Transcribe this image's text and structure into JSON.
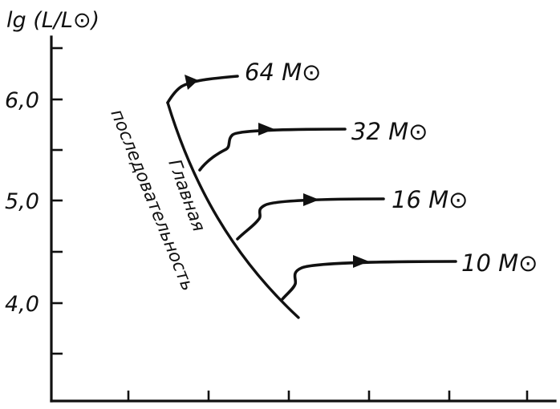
{
  "figure": {
    "y_axis_label": "lg (L/L⊙)",
    "y_tick_labels": [
      "6,0",
      "5,0",
      "4,0"
    ],
    "main_sequence_label": [
      "Главная",
      "последовательность"
    ]
  },
  "tracks": [
    {
      "mass_label": "64 M⊙"
    },
    {
      "mass_label": "32 M⊙"
    },
    {
      "mass_label": "16 M⊙"
    },
    {
      "mass_label": "10 M⊙"
    }
  ],
  "chart_data": {
    "type": "line",
    "ylabel": "lg (L/L⊙)",
    "yticks": [
      6.0,
      5.0,
      4.0
    ],
    "series": [
      {
        "name": "64 M⊙",
        "start_lg_L": 5.95,
        "end_lg_L": 6.22
      },
      {
        "name": "32 M⊙",
        "start_lg_L": 5.28,
        "end_lg_L": 5.7
      },
      {
        "name": "16 M⊙",
        "start_lg_L": 4.6,
        "end_lg_L": 5.03
      },
      {
        "name": "10 M⊙",
        "start_lg_L": 4.05,
        "end_lg_L": 4.4
      }
    ]
  }
}
